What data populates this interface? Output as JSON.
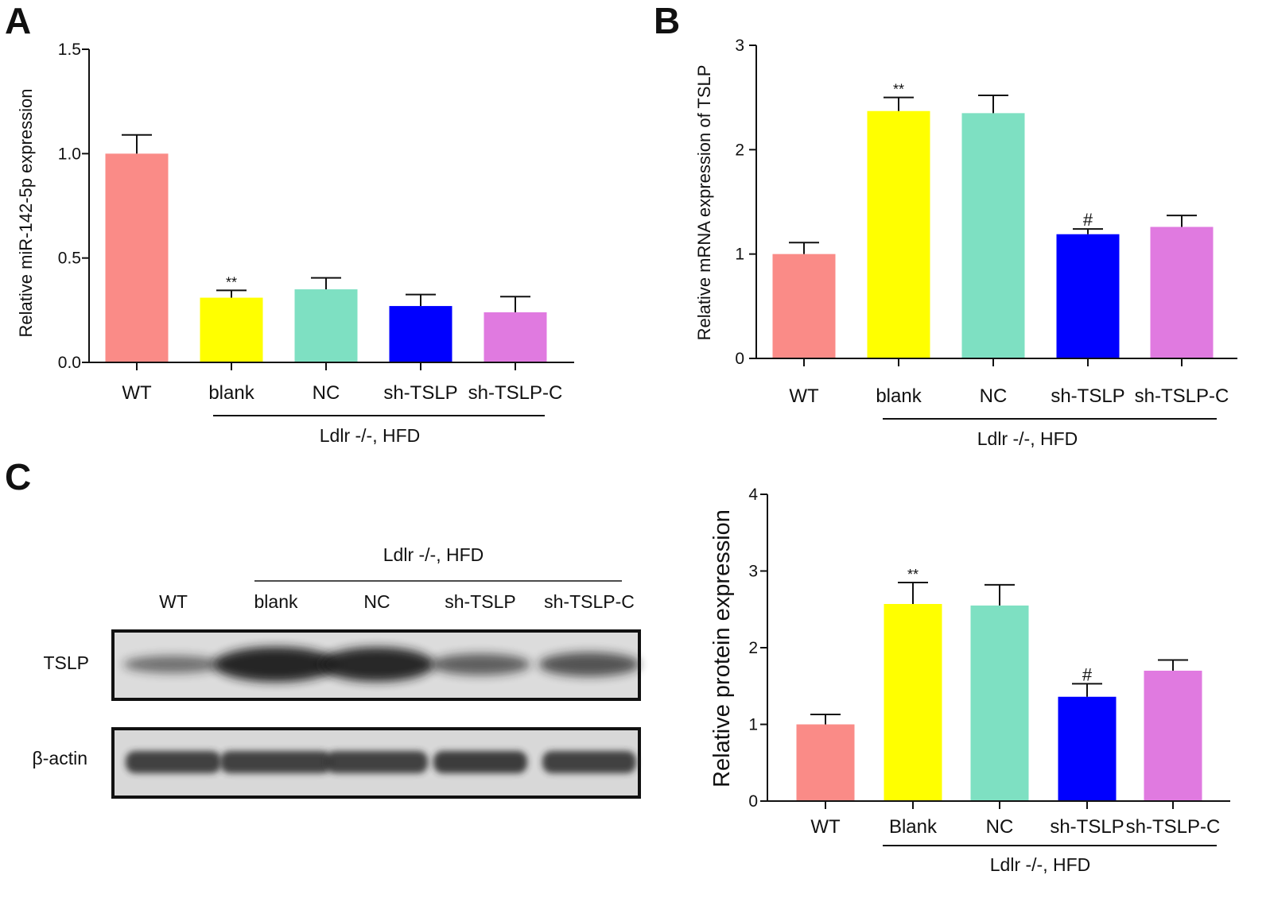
{
  "colors": [
    "#fa8b87",
    "#ffff00",
    "#7ee0c2",
    "#0000ff",
    "#e07ae0"
  ],
  "panels": {
    "a": {
      "label": "A"
    },
    "b": {
      "label": "B"
    },
    "c": {
      "label": "C"
    }
  },
  "chart_data": [
    {
      "id": "a",
      "type": "bar",
      "categories": [
        "WT",
        "blank",
        "NC",
        "sh-TSLP",
        "sh-TSLP-C"
      ],
      "values": [
        1.0,
        0.31,
        0.35,
        0.27,
        0.24
      ],
      "errors": [
        0.09,
        0.035,
        0.055,
        0.055,
        0.075
      ],
      "annotations": [
        "",
        "**",
        "",
        "",
        ""
      ],
      "ylabel": "Relative miR-142-5p expression",
      "ylim": [
        0,
        1.5
      ],
      "ticks": [
        0,
        0.5,
        1.0,
        1.5
      ],
      "tick_labels": [
        "0.0",
        "0.5",
        "1.0",
        "1.5"
      ],
      "group_label": "Ldlr -/-, HFD"
    },
    {
      "id": "b",
      "type": "bar",
      "categories": [
        "WT",
        "blank",
        "NC",
        "sh-TSLP",
        "sh-TSLP-C"
      ],
      "values": [
        1.0,
        2.37,
        2.35,
        1.19,
        1.26
      ],
      "errors": [
        0.11,
        0.13,
        0.17,
        0.05,
        0.11
      ],
      "annotations": [
        "",
        "**",
        "",
        "#",
        ""
      ],
      "ylabel": "Relative mRNA expression of TSLP",
      "ylim": [
        0,
        3
      ],
      "ticks": [
        0,
        1,
        2,
        3
      ],
      "tick_labels": [
        "0",
        "1",
        "2",
        "3"
      ],
      "group_label": "Ldlr -/-, HFD"
    },
    {
      "id": "c",
      "type": "bar",
      "categories": [
        "WT",
        "Blank",
        "NC",
        "sh-TSLP",
        "sh-TSLP-C"
      ],
      "values": [
        1.0,
        2.57,
        2.55,
        1.36,
        1.7
      ],
      "errors": [
        0.13,
        0.28,
        0.27,
        0.17,
        0.14
      ],
      "annotations": [
        "",
        "**",
        "",
        "#",
        ""
      ],
      "ylabel": "Relative protein expression",
      "ylim": [
        0,
        4
      ],
      "ticks": [
        0,
        1,
        2,
        3,
        4
      ],
      "tick_labels": [
        "0",
        "1",
        "2",
        "3",
        "4"
      ],
      "group_label": "Ldlr -/-, HFD"
    }
  ],
  "western_blot": {
    "group_label": "Ldlr -/-, HFD",
    "lanes": [
      "WT",
      "blank",
      "NC",
      "sh-TSLP",
      "sh-TSLP-C"
    ],
    "rows": [
      "TSLP",
      "β-actin"
    ],
    "tslp_band_intensity": [
      0.35,
      1.0,
      0.98,
      0.5,
      0.6
    ],
    "actin_band_intensity": [
      0.85,
      0.85,
      0.85,
      0.9,
      0.85
    ]
  }
}
